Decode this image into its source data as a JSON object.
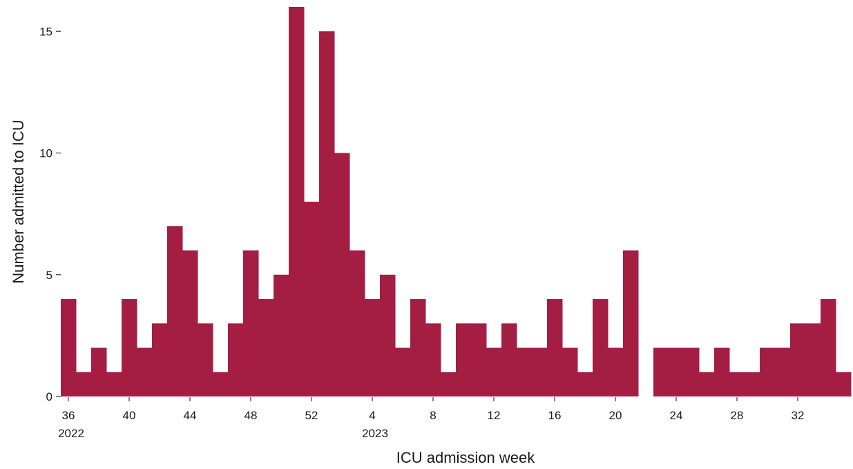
{
  "chart_data": {
    "type": "bar",
    "title": "",
    "xlabel": "ICU admission week",
    "ylabel": "Number admitted to ICU",
    "ylim": [
      0,
      16
    ],
    "yticks": [
      0,
      5,
      10,
      15
    ],
    "grid": false,
    "color": "#a41e43",
    "weeks": [
      "36",
      "37",
      "38",
      "39",
      "40",
      "41",
      "42",
      "43",
      "44",
      "45",
      "46",
      "47",
      "48",
      "49",
      "50",
      "51",
      "52",
      "1",
      "2",
      "3",
      "4",
      "5",
      "6",
      "7",
      "8",
      "9",
      "10",
      "11",
      "12",
      "13",
      "14",
      "15",
      "16",
      "17",
      "18",
      "19",
      "20",
      "21",
      "22",
      "23",
      "24",
      "25",
      "26",
      "27",
      "28",
      "29",
      "30",
      "31",
      "32",
      "33",
      "34",
      "35"
    ],
    "values": [
      4,
      1,
      2,
      1,
      4,
      2,
      3,
      7,
      6,
      3,
      1,
      3,
      6,
      4,
      5,
      16,
      8,
      15,
      10,
      6,
      4,
      5,
      2,
      4,
      3,
      1,
      3,
      3,
      2,
      3,
      2,
      2,
      4,
      2,
      1,
      4,
      2,
      6,
      0,
      2,
      2,
      2,
      1,
      2,
      1,
      1,
      2,
      2,
      3,
      3,
      4,
      1
    ],
    "xtick_labels": [
      {
        "week": "36",
        "label": "36",
        "year": "2022"
      },
      {
        "week": "40",
        "label": "40"
      },
      {
        "week": "44",
        "label": "44"
      },
      {
        "week": "48",
        "label": "48"
      },
      {
        "week": "52",
        "label": "52"
      },
      {
        "week": "4",
        "label": "4",
        "year": "2023"
      },
      {
        "week": "8",
        "label": "8"
      },
      {
        "week": "12",
        "label": "12"
      },
      {
        "week": "16",
        "label": "16"
      },
      {
        "week": "20",
        "label": "20"
      },
      {
        "week": "24",
        "label": "24"
      },
      {
        "week": "28",
        "label": "28"
      },
      {
        "week": "32",
        "label": "32"
      }
    ]
  }
}
